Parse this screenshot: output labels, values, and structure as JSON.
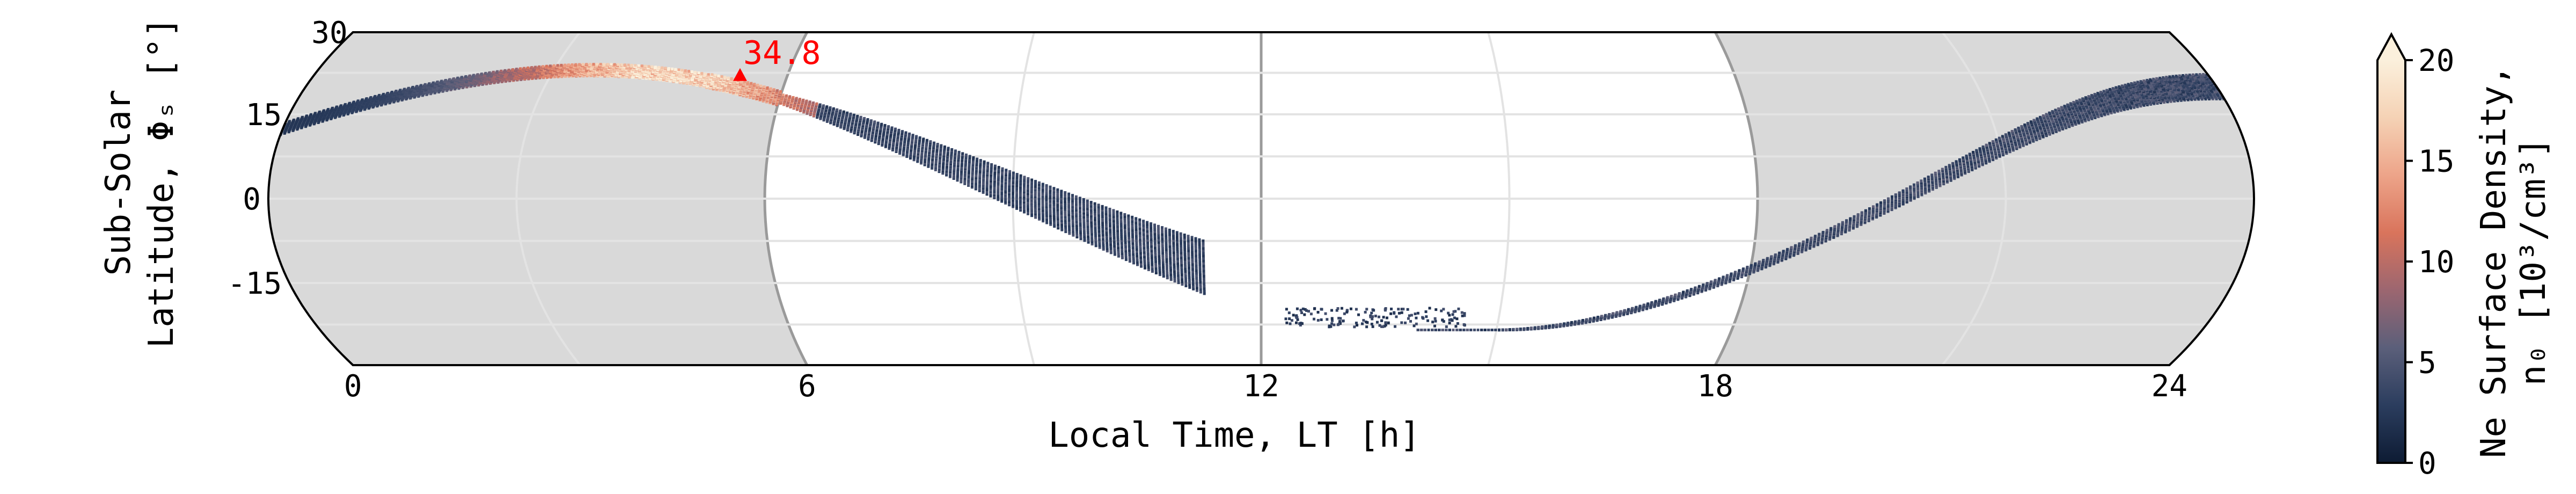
{
  "chart_data": {
    "type": "scatter",
    "projection": "mollweide-band",
    "xlabel": "Local Time, LT [h]",
    "ylabel_line1": "Sub-Solar",
    "ylabel_line2": "Latitude, Φₛ [°]",
    "xlim": [
      0,
      24
    ],
    "ylim": [
      -30,
      30
    ],
    "xticks": [
      0,
      6,
      12,
      18,
      24
    ],
    "xtick_labels": [
      "0",
      "6",
      "12",
      "18",
      "24"
    ],
    "yticks": [
      30,
      15,
      0,
      -15
    ],
    "ytick_labels": [
      "30",
      "15",
      "0",
      "-15"
    ],
    "night_shading": [
      [
        0,
        6
      ],
      [
        18,
        24
      ]
    ],
    "grid": true,
    "colorbar": {
      "label_line1": "Ne Surface Density,",
      "label_line2": "n₀ [10³/cm³]",
      "range": [
        0,
        20
      ],
      "extend": "max",
      "ticks": [
        0,
        5,
        10,
        15,
        20
      ],
      "tick_labels": [
        "0",
        "5",
        "10",
        "15",
        "20"
      ],
      "colors": [
        "#0d1b33",
        "#2b3d5e",
        "#5b5f7a",
        "#9c6670",
        "#d9745c",
        "#eda489",
        "#f5d2b5",
        "#fbf0dc"
      ]
    },
    "annotation": {
      "text": "34.8",
      "x": 5.4,
      "y": 22.0,
      "marker": "triangle",
      "color": "#ff0000"
    },
    "orbit_model": {
      "segments": [
        {
          "lt_start": 0.0,
          "lt_end": 11.3,
          "lat0_min": 10.0,
          "lat0_max": 20.0,
          "peak_lt": 3.5,
          "peak_lat": 23.0
        },
        {
          "lt_start": 12.3,
          "lt_end": 14.6,
          "lat_min": -23.0,
          "lat_max": -19.5
        },
        {
          "lt_start": 14.0,
          "lt_end": 24.0,
          "lat_min": -23.5,
          "lat_max": 20.0
        }
      ],
      "density_peak_lt": 4.5,
      "density_max": 20
    }
  }
}
